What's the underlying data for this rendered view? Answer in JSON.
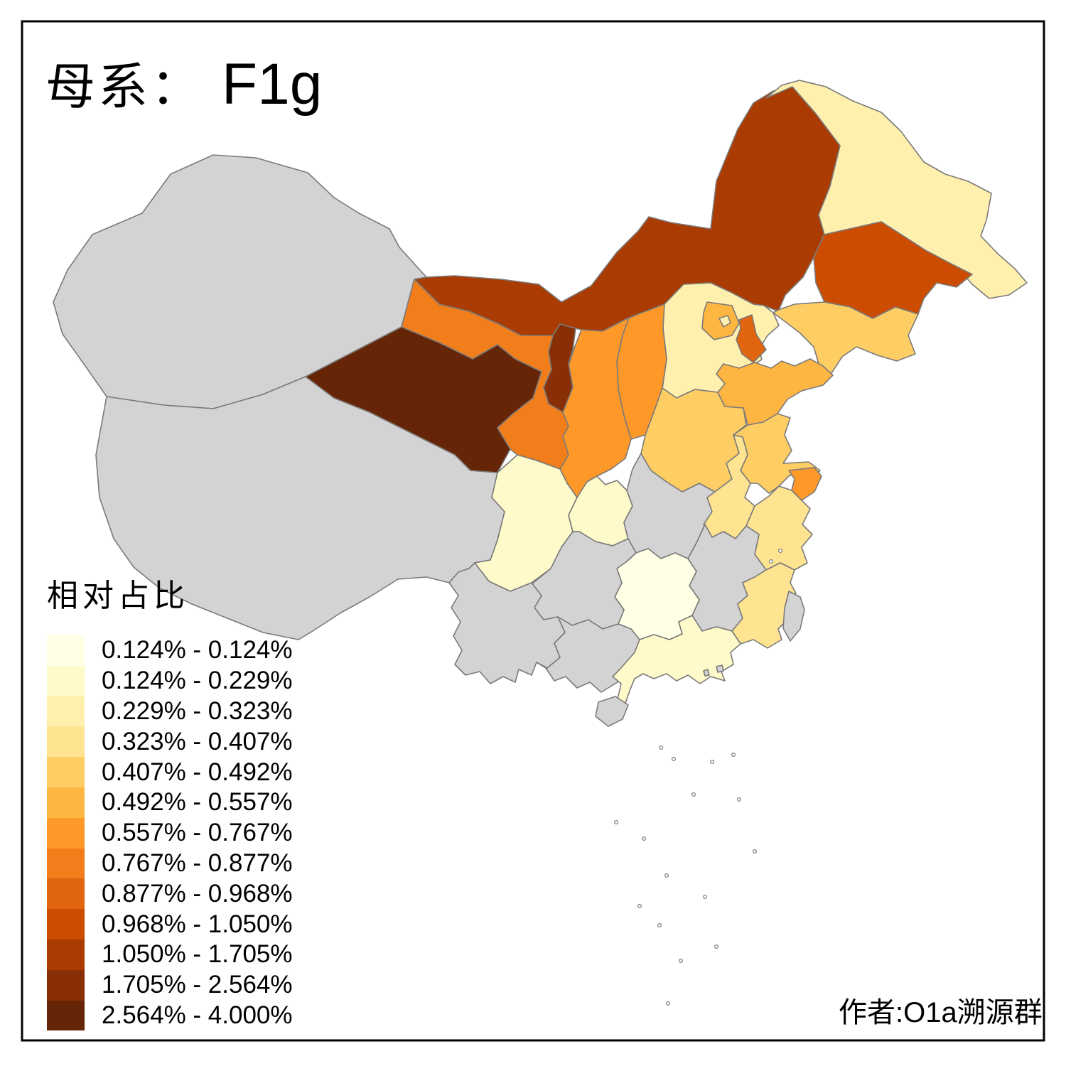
{
  "title": {
    "prefix": "母系：",
    "value": "F1g"
  },
  "legend": {
    "title": "相对占比",
    "classes": [
      {
        "label": "0.124% - 0.124%",
        "color": "#FFFFE5"
      },
      {
        "label": "0.124% - 0.229%",
        "color": "#FFFACA"
      },
      {
        "label": "0.229% - 0.323%",
        "color": "#FFF0AE"
      },
      {
        "label": "0.323% - 0.407%",
        "color": "#FEE391"
      },
      {
        "label": "0.407% - 0.492%",
        "color": "#FECE65"
      },
      {
        "label": "0.492% - 0.557%",
        "color": "#FEB642"
      },
      {
        "label": "0.557% - 0.767%",
        "color": "#FE9929"
      },
      {
        "label": "0.767% - 0.877%",
        "color": "#F27E1B"
      },
      {
        "label": "0.877% - 0.968%",
        "color": "#E1640E"
      },
      {
        "label": "0.968% - 1.050%",
        "color": "#CC4C02"
      },
      {
        "label": "1.050% - 1.705%",
        "color": "#AA3C03"
      },
      {
        "label": "1.705% - 2.564%",
        "color": "#882F05"
      },
      {
        "label": "2.564% - 4.000%",
        "color": "#662506"
      }
    ]
  },
  "attribution": "作者:O1a溯源群",
  "map": {
    "border_color": "#7a7a7a",
    "frame_color": "#000000",
    "no_data_color": "#D3D3D3",
    "background": "#FFFFFF",
    "provinces": [
      {
        "id": "xinjiang",
        "class_index": null
      },
      {
        "id": "xizang",
        "class_index": null
      },
      {
        "id": "qinghai",
        "class_index": 12
      },
      {
        "id": "gansu",
        "class_index": 7
      },
      {
        "id": "neimenggu",
        "class_index": 10
      },
      {
        "id": "heilongjiang",
        "class_index": 2
      },
      {
        "id": "jilin",
        "class_index": 9
      },
      {
        "id": "liaoning",
        "class_index": 4
      },
      {
        "id": "hebei",
        "class_index": 2
      },
      {
        "id": "beijing",
        "class_index": 5
      },
      {
        "id": "tianjin",
        "class_index": 8
      },
      {
        "id": "beijing-enclave",
        "class_index": 2
      },
      {
        "id": "shanxi",
        "class_index": 6
      },
      {
        "id": "shaanxi",
        "class_index": 6
      },
      {
        "id": "ningxia",
        "class_index": 11
      },
      {
        "id": "sichuan",
        "class_index": 1
      },
      {
        "id": "chongqing",
        "class_index": 1
      },
      {
        "id": "hubei",
        "class_index": null
      },
      {
        "id": "henan",
        "class_index": 4
      },
      {
        "id": "shandong",
        "class_index": 5
      },
      {
        "id": "jiangsu",
        "class_index": 4
      },
      {
        "id": "anhui",
        "class_index": 3
      },
      {
        "id": "shanghai",
        "class_index": 6
      },
      {
        "id": "zhejiang",
        "class_index": 3
      },
      {
        "id": "jiangxi",
        "class_index": null
      },
      {
        "id": "fujian",
        "class_index": 3
      },
      {
        "id": "hunan",
        "class_index": 0
      },
      {
        "id": "guizhou",
        "class_index": null
      },
      {
        "id": "yunnan",
        "class_index": null
      },
      {
        "id": "guangxi",
        "class_index": null
      },
      {
        "id": "guangdong",
        "class_index": 1
      },
      {
        "id": "hainan",
        "class_index": null
      },
      {
        "id": "taiwan",
        "class_index": null
      },
      {
        "id": "hongkong",
        "class_index": null
      },
      {
        "id": "macau",
        "class_index": null
      }
    ]
  }
}
